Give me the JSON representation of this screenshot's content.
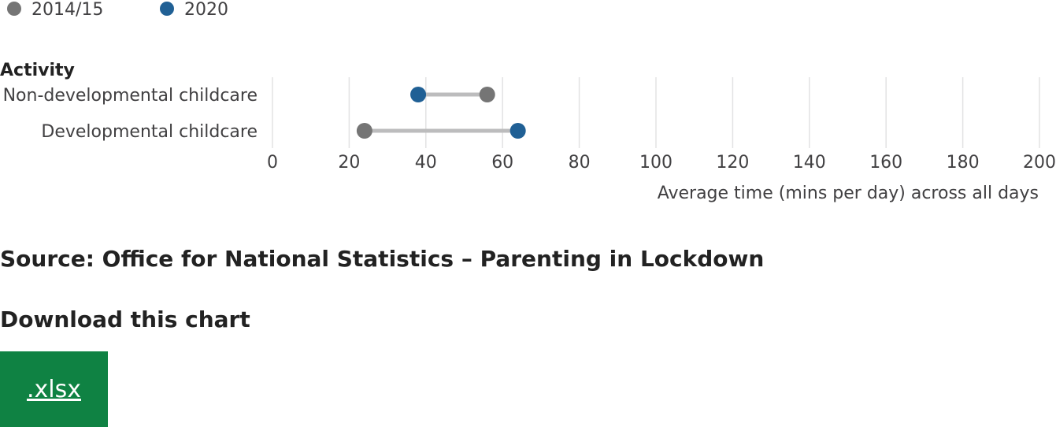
{
  "chart_data": {
    "type": "dumbbell",
    "category_axis_title": "Activity",
    "categories": [
      "Non-developmental childcare",
      "Developmental childcare"
    ],
    "series": [
      {
        "name": "2014/15",
        "color": "#757575",
        "values": [
          56,
          24
        ]
      },
      {
        "name": "2020",
        "color": "#206095",
        "values": [
          38,
          64
        ]
      }
    ],
    "xlabel": "Average time (mins per day) across all days",
    "xlim": [
      0,
      200
    ],
    "xticks": [
      0,
      20,
      40,
      60,
      80,
      100,
      120,
      140,
      160,
      180,
      200
    ],
    "grid": true,
    "legend_position": "top-left",
    "connector_color": "#bcbcbd"
  },
  "source": "Source: Office for National Statistics – Parenting in Lockdown",
  "download": {
    "title": "Download this chart",
    "xlsx_label": ".xlsx",
    "button_color": "#0f8243"
  }
}
